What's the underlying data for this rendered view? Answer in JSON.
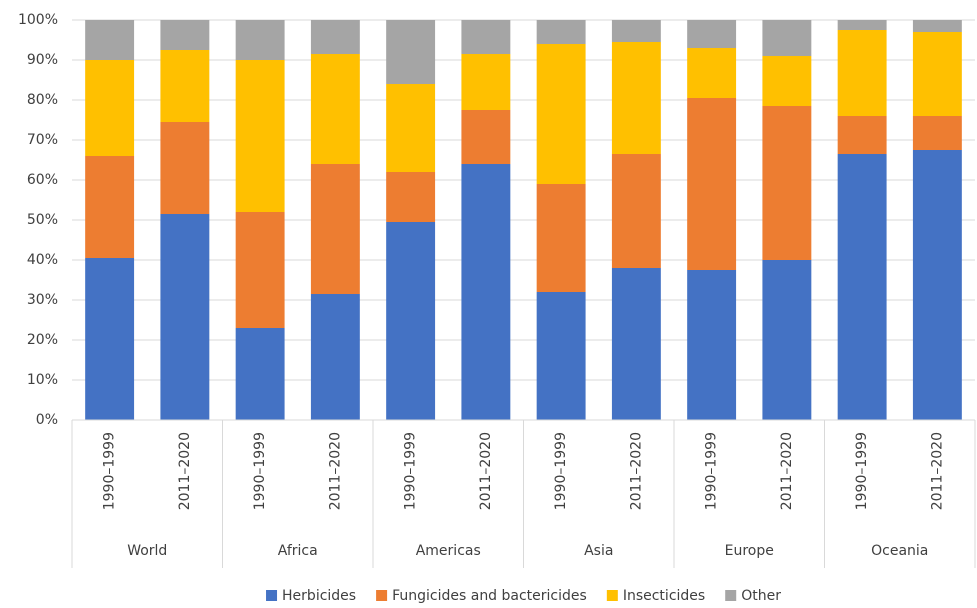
{
  "chart_data": {
    "type": "stacked_bar",
    "categories": [
      "1990–1999",
      "2011–2020",
      "1990–1999",
      "2011–2020",
      "1990–1999",
      "2011–2020",
      "1990–1999",
      "2011–2020",
      "1990–1999",
      "2011–2020",
      "1990–1999",
      "2011–2020"
    ],
    "groups": [
      "World",
      "Africa",
      "Americas",
      "Asia",
      "Europe",
      "Oceania"
    ],
    "series": [
      {
        "name": "Herbicides",
        "color": "#4472c4",
        "values": [
          40.5,
          51.5,
          23,
          31.5,
          49.5,
          64,
          32,
          38,
          37.5,
          40,
          66.5,
          67.5
        ]
      },
      {
        "name": "Fungicides and bactericides",
        "color": "#ed7d31",
        "values": [
          25.5,
          23,
          29,
          32.5,
          12.5,
          13.5,
          27,
          28.5,
          43,
          38.5,
          9.5,
          8.5
        ]
      },
      {
        "name": "Insecticides",
        "color": "#ffc000",
        "values": [
          24,
          18,
          38,
          27.5,
          22,
          14,
          35,
          28,
          12.5,
          12.5,
          21.5,
          21
        ]
      },
      {
        "name": "Other",
        "color": "#a5a5a5",
        "values": [
          10,
          7.5,
          10,
          8.5,
          16,
          8.5,
          6,
          5.5,
          7,
          9,
          2.5,
          3
        ]
      }
    ],
    "ylim": [
      0,
      100
    ],
    "yticks": [
      {
        "value": 0,
        "label": "0%"
      },
      {
        "value": 10,
        "label": "10%"
      },
      {
        "value": 20,
        "label": "20%"
      },
      {
        "value": 30,
        "label": "30%"
      },
      {
        "value": 40,
        "label": "40%"
      },
      {
        "value": 50,
        "label": "50%"
      },
      {
        "value": 60,
        "label": "60%"
      },
      {
        "value": 70,
        "label": "70%"
      },
      {
        "value": 80,
        "label": "80%"
      },
      {
        "value": 90,
        "label": "90%"
      },
      {
        "value": 100,
        "label": "100%"
      }
    ],
    "grid": true,
    "legend": "bottom"
  }
}
